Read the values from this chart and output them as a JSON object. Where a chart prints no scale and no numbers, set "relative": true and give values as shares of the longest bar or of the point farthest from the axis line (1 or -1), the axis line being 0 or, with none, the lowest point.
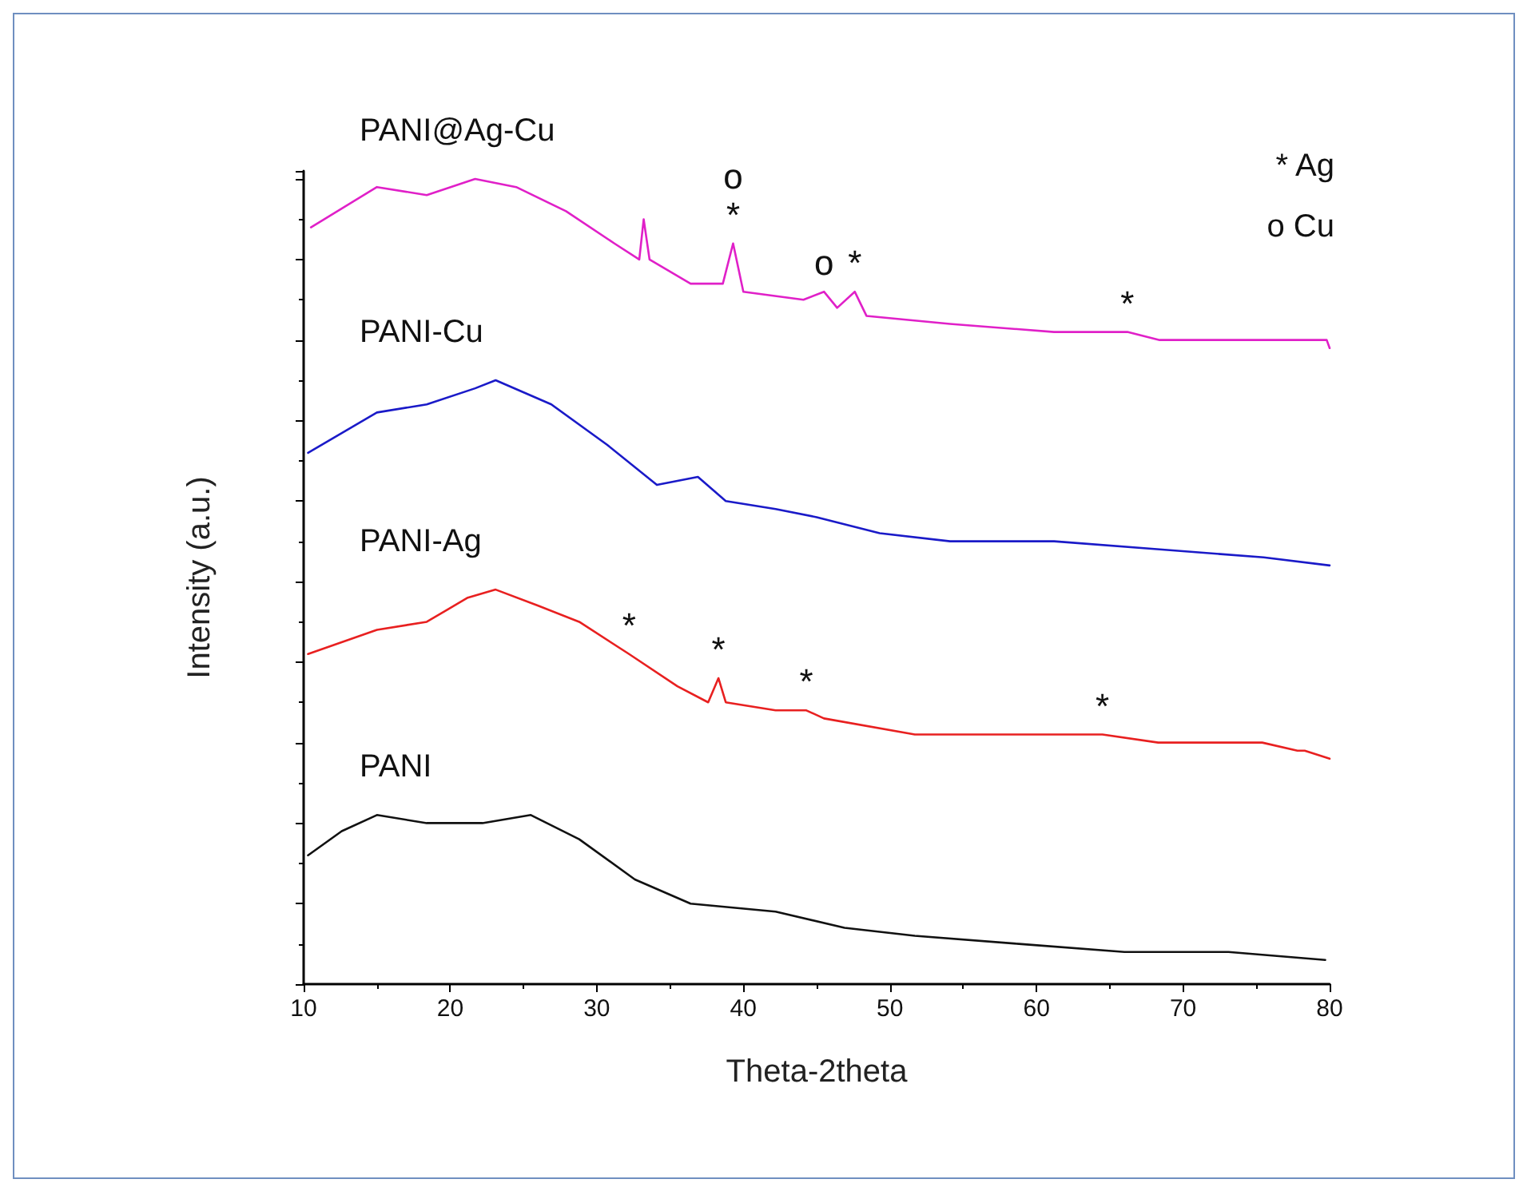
{
  "chart_data": {
    "type": "line",
    "relative": true,
    "xlabel": "Theta-2theta",
    "ylabel": "Intensity (a.u.)",
    "xlim": [
      10,
      80
    ],
    "xticks": [
      10,
      20,
      30,
      40,
      50,
      60,
      70,
      80
    ],
    "grid": false,
    "legend": false,
    "marker": "none",
    "line_style": "solid",
    "series": [
      {
        "name": "PANI@Ag-Cu",
        "color": "#e020c8",
        "x": [
          10.5,
          15.0,
          18.4,
          21.7,
          24.5,
          27.9,
          31.2,
          32.9,
          33.2,
          33.6,
          36.4,
          38.6,
          39.3,
          40.0,
          44.1,
          45.5,
          46.4,
          47.6,
          48.4,
          54.1,
          61.2,
          66.2,
          68.4,
          75.5,
          79.8,
          80
        ],
        "values": [
          0.94,
          0.99,
          0.98,
          1.0,
          0.99,
          0.96,
          0.92,
          0.9,
          0.95,
          0.9,
          0.87,
          0.87,
          0.92,
          0.86,
          0.85,
          0.86,
          0.84,
          0.86,
          0.83,
          0.82,
          0.81,
          0.81,
          0.8,
          0.8,
          0.8,
          0.79
        ]
      },
      {
        "name": "PANI-Cu",
        "color": "#1a1ac8",
        "x": [
          10.3,
          15.0,
          18.4,
          21.7,
          23.1,
          26.9,
          30.7,
          34.1,
          36.9,
          38.8,
          42.2,
          45.0,
          49.3,
          54.1,
          61.2,
          68.4,
          75.5,
          80
        ],
        "values": [
          0.66,
          0.71,
          0.72,
          0.74,
          0.75,
          0.72,
          0.67,
          0.62,
          0.63,
          0.6,
          0.59,
          0.58,
          0.56,
          0.55,
          0.55,
          0.54,
          0.53,
          0.52
        ]
      },
      {
        "name": "PANI-Ag",
        "color": "#e82020",
        "x": [
          10.3,
          15.0,
          18.4,
          21.2,
          23.1,
          26.0,
          28.8,
          32.2,
          35.5,
          37.6,
          38.3,
          38.8,
          42.2,
          44.3,
          45.5,
          51.7,
          58.8,
          64.5,
          68.3,
          75.4,
          77.8,
          78.3,
          80
        ],
        "values": [
          0.41,
          0.44,
          0.45,
          0.48,
          0.49,
          0.47,
          0.45,
          0.41,
          0.37,
          0.35,
          0.38,
          0.35,
          0.34,
          0.34,
          0.33,
          0.31,
          0.31,
          0.31,
          0.3,
          0.3,
          0.29,
          0.29,
          0.28
        ]
      },
      {
        "name": "PANI",
        "color": "#111111",
        "x": [
          10.3,
          12.6,
          15.0,
          18.4,
          22.2,
          25.5,
          28.8,
          32.6,
          36.4,
          42.2,
          46.9,
          51.7,
          58.8,
          66.0,
          73.1,
          79.7
        ],
        "values": [
          0.16,
          0.19,
          0.21,
          0.2,
          0.2,
          0.21,
          0.18,
          0.13,
          0.1,
          0.09,
          0.07,
          0.06,
          0.05,
          0.04,
          0.04,
          0.03
        ]
      }
    ],
    "annotations": [
      "* Ag",
      "o Cu",
      {
        "text": "o",
        "x": 39.3,
        "y": 0.92
      },
      {
        "text": "*",
        "x": 39.3,
        "y": 0.92
      },
      {
        "text": "o",
        "x": 45.5,
        "y": 0.86
      },
      {
        "text": "*",
        "x": 47.6,
        "y": 0.86
      },
      {
        "text": "*",
        "x": 66.2,
        "y": 0.81
      },
      {
        "text": "*",
        "x": 32.2,
        "y": 0.41
      },
      {
        "text": "*",
        "x": 38.3,
        "y": 0.38
      },
      {
        "text": "*",
        "x": 44.3,
        "y": 0.34
      },
      {
        "text": "*",
        "x": 64.5,
        "y": 0.31
      }
    ]
  }
}
